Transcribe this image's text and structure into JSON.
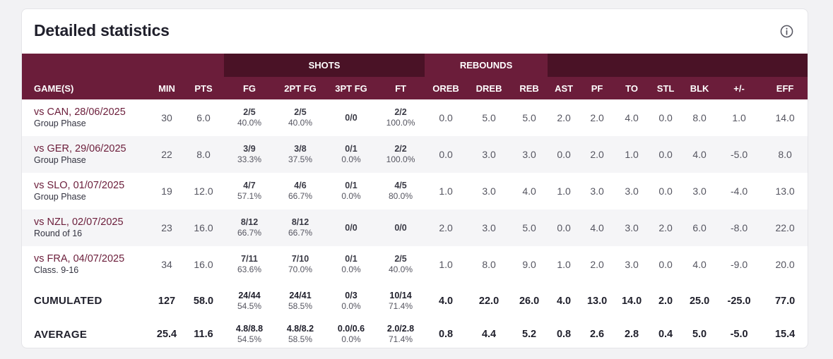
{
  "title": "Detailed statistics",
  "icons": {
    "info": "info-circle-icon"
  },
  "colors": {
    "header_bg": "#6b1d3a",
    "header_dark": "#4a1226",
    "link": "#6b1d3a"
  },
  "groups": {
    "shots": "SHOTS",
    "rebounds": "REBOUNDS"
  },
  "columns": [
    "GAME(S)",
    "MIN",
    "PTS",
    "FG",
    "2PT FG",
    "3PT FG",
    "FT",
    "OREB",
    "DREB",
    "REB",
    "AST",
    "PF",
    "TO",
    "STL",
    "BLK",
    "+/-",
    "EFF"
  ],
  "games": [
    {
      "opponent": "vs CAN, 28/06/2025",
      "phase": "Group Phase",
      "min": "30",
      "pts": "6.0",
      "fg": [
        "2/5",
        "40.0%"
      ],
      "fg2": [
        "2/5",
        "40.0%"
      ],
      "fg3": [
        "0/0",
        ""
      ],
      "ft": [
        "2/2",
        "100.0%"
      ],
      "oreb": "0.0",
      "dreb": "5.0",
      "reb": "5.0",
      "ast": "2.0",
      "pf": "2.0",
      "to": "4.0",
      "stl": "0.0",
      "blk": "8.0",
      "pm": "1.0",
      "eff": "14.0"
    },
    {
      "opponent": "vs GER, 29/06/2025",
      "phase": "Group Phase",
      "min": "22",
      "pts": "8.0",
      "fg": [
        "3/9",
        "33.3%"
      ],
      "fg2": [
        "3/8",
        "37.5%"
      ],
      "fg3": [
        "0/1",
        "0.0%"
      ],
      "ft": [
        "2/2",
        "100.0%"
      ],
      "oreb": "0.0",
      "dreb": "3.0",
      "reb": "3.0",
      "ast": "0.0",
      "pf": "2.0",
      "to": "1.0",
      "stl": "0.0",
      "blk": "4.0",
      "pm": "-5.0",
      "eff": "8.0"
    },
    {
      "opponent": "vs SLO, 01/07/2025",
      "phase": "Group Phase",
      "min": "19",
      "pts": "12.0",
      "fg": [
        "4/7",
        "57.1%"
      ],
      "fg2": [
        "4/6",
        "66.7%"
      ],
      "fg3": [
        "0/1",
        "0.0%"
      ],
      "ft": [
        "4/5",
        "80.0%"
      ],
      "oreb": "1.0",
      "dreb": "3.0",
      "reb": "4.0",
      "ast": "1.0",
      "pf": "3.0",
      "to": "3.0",
      "stl": "0.0",
      "blk": "3.0",
      "pm": "-4.0",
      "eff": "13.0"
    },
    {
      "opponent": "vs NZL, 02/07/2025",
      "phase": "Round of 16",
      "min": "23",
      "pts": "16.0",
      "fg": [
        "8/12",
        "66.7%"
      ],
      "fg2": [
        "8/12",
        "66.7%"
      ],
      "fg3": [
        "0/0",
        ""
      ],
      "ft": [
        "0/0",
        ""
      ],
      "oreb": "2.0",
      "dreb": "3.0",
      "reb": "5.0",
      "ast": "0.0",
      "pf": "4.0",
      "to": "3.0",
      "stl": "2.0",
      "blk": "6.0",
      "pm": "-8.0",
      "eff": "22.0"
    },
    {
      "opponent": "vs FRA, 04/07/2025",
      "phase": "Class. 9-16",
      "min": "34",
      "pts": "16.0",
      "fg": [
        "7/11",
        "63.6%"
      ],
      "fg2": [
        "7/10",
        "70.0%"
      ],
      "fg3": [
        "0/1",
        "0.0%"
      ],
      "ft": [
        "2/5",
        "40.0%"
      ],
      "oreb": "1.0",
      "dreb": "8.0",
      "reb": "9.0",
      "ast": "1.0",
      "pf": "2.0",
      "to": "3.0",
      "stl": "0.0",
      "blk": "4.0",
      "pm": "-9.0",
      "eff": "20.0"
    }
  ],
  "cumulated": {
    "label": "CUMULATED",
    "min": "127",
    "pts": "58.0",
    "fg": [
      "24/44",
      "54.5%"
    ],
    "fg2": [
      "24/41",
      "58.5%"
    ],
    "fg3": [
      "0/3",
      "0.0%"
    ],
    "ft": [
      "10/14",
      "71.4%"
    ],
    "oreb": "4.0",
    "dreb": "22.0",
    "reb": "26.0",
    "ast": "4.0",
    "pf": "13.0",
    "to": "14.0",
    "stl": "2.0",
    "blk": "25.0",
    "pm": "-25.0",
    "eff": "77.0"
  },
  "average": {
    "label": "AVERAGE",
    "min": "25.4",
    "pts": "11.6",
    "fg": [
      "4.8/8.8",
      "54.5%"
    ],
    "fg2": [
      "4.8/8.2",
      "58.5%"
    ],
    "fg3": [
      "0.0/0.6",
      "0.0%"
    ],
    "ft": [
      "2.0/2.8",
      "71.4%"
    ],
    "oreb": "0.8",
    "dreb": "4.4",
    "reb": "5.2",
    "ast": "0.8",
    "pf": "2.6",
    "to": "2.8",
    "stl": "0.4",
    "blk": "5.0",
    "pm": "-5.0",
    "eff": "15.4"
  }
}
